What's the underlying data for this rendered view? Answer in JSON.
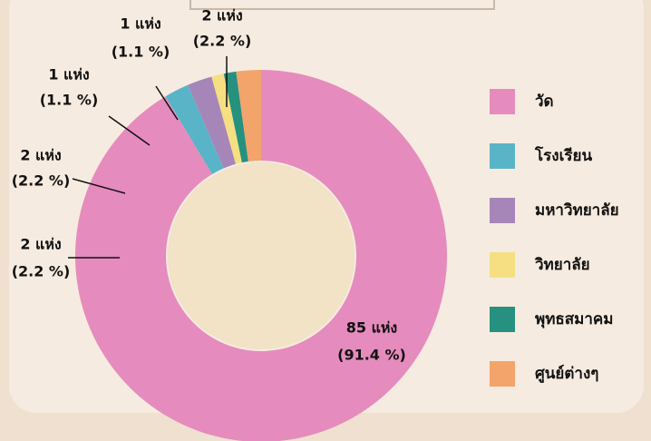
{
  "chart_data": {
    "type": "donut",
    "categories": [
      "วัด",
      "โรงเรียน",
      "มหาวิทยาลัย",
      "วิทยาลัย",
      "พุทธสมาคม",
      "ศูนย์ต่างๆ"
    ],
    "values": [
      85,
      2,
      2,
      1,
      1,
      2
    ],
    "value_labels": [
      "85 แห่ง",
      "2 แห่ง",
      "2 แห่ง",
      "1 แห่ง",
      "1 แห่ง",
      "2 แห่ง"
    ],
    "percents": [
      91.4,
      2.2,
      2.2,
      1.1,
      1.1,
      2.2
    ],
    "percent_labels": [
      "(91.4 %)",
      "(2.2 %)",
      "(2.2 %)",
      "(1.1 %)",
      "(1.1 %)",
      "(2.2 %)"
    ],
    "colors": [
      "#e68bbd",
      "#5ab4c8",
      "#a686b8",
      "#f5df82",
      "#26917f",
      "#f3a46a"
    ],
    "legend": "right"
  }
}
